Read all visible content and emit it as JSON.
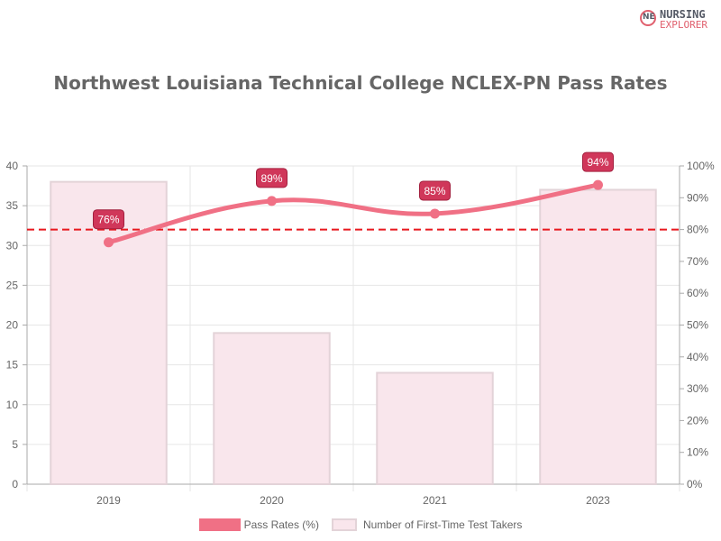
{
  "logo": {
    "line1": "NURSING",
    "line2": "EXPLORER",
    "mark": "NE"
  },
  "chart_data": {
    "type": "bar+line",
    "title": "Northwest Louisiana Technical College NCLEX-PN Pass Rates",
    "categories": [
      "2019",
      "2020",
      "2021",
      "2023"
    ],
    "series": [
      {
        "name": "Pass Rates (%)",
        "type": "line",
        "axis": "right",
        "values": [
          76,
          89,
          85,
          94
        ],
        "labels": [
          "76%",
          "89%",
          "85%",
          "94%"
        ],
        "color": "#f07085"
      },
      {
        "name": "Number of First-Time Test Takers",
        "type": "bar",
        "axis": "left",
        "values": [
          38,
          19,
          14,
          37
        ],
        "color": "#f9e6ec",
        "border": "#e3d3d8"
      }
    ],
    "left_axis": {
      "min": 0,
      "max": 40,
      "ticks": [
        "0",
        "5",
        "10",
        "15",
        "20",
        "25",
        "30",
        "35",
        "40"
      ]
    },
    "right_axis": {
      "min": 0,
      "max": 100,
      "ticks": [
        "0%",
        "10%",
        "20%",
        "30%",
        "40%",
        "50%",
        "60%",
        "70%",
        "80%",
        "90%",
        "100%"
      ]
    },
    "reference_line": {
      "value": 80,
      "axis": "right",
      "style": "dashed",
      "color": "#e8181e"
    },
    "grid": true,
    "legend_position": "bottom"
  },
  "legend": {
    "line_label": "Pass Rates (%)",
    "bar_label": "Number of First-Time Test Takers"
  }
}
